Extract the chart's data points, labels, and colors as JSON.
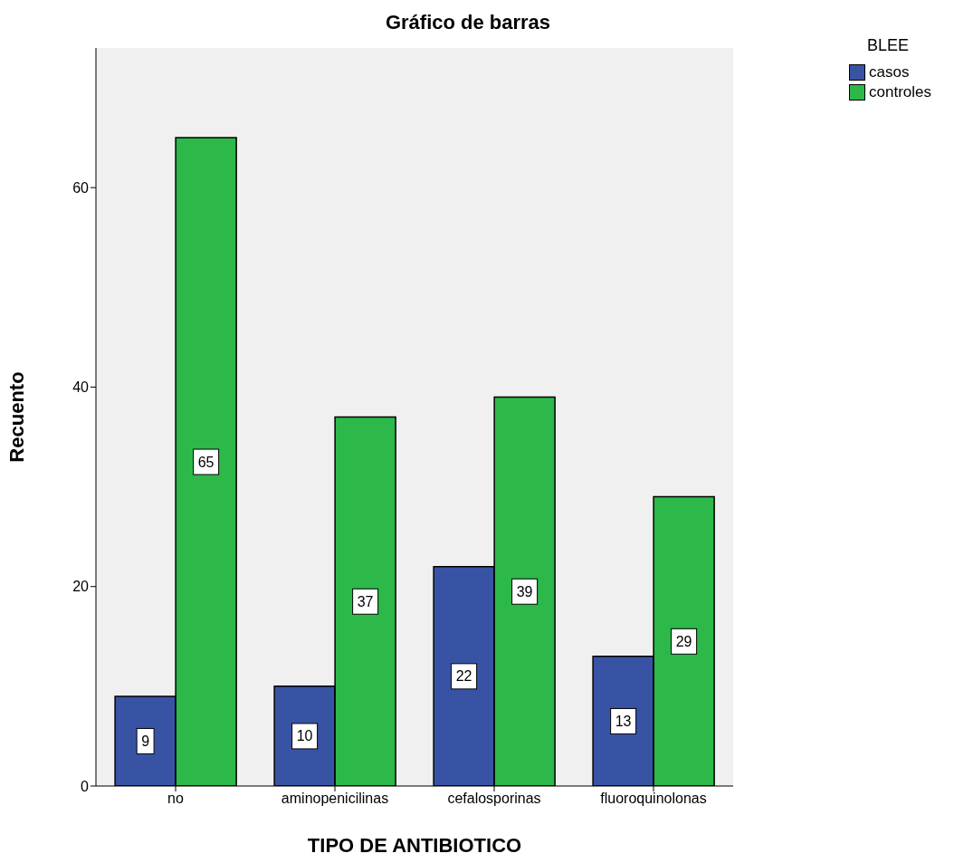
{
  "chart_data": {
    "type": "bar",
    "title": "Gráfico de barras",
    "xlabel": "TIPO DE ANTIBIOTICO",
    "ylabel": "Recuento",
    "legend_title": "BLEE",
    "categories": [
      "no",
      "aminopenicilinas",
      "cefalosporinas",
      "fluoroquinolonas"
    ],
    "series": [
      {
        "name": "casos",
        "color": "#3953a4",
        "values": [
          9,
          10,
          22,
          13
        ]
      },
      {
        "name": "controles",
        "color": "#2db84a",
        "values": [
          65,
          37,
          39,
          29
        ]
      }
    ],
    "ylim": [
      0,
      74
    ],
    "yticks": [
      0,
      20,
      40,
      60
    ],
    "grid": false,
    "legend": "top right",
    "data_labels": true
  }
}
